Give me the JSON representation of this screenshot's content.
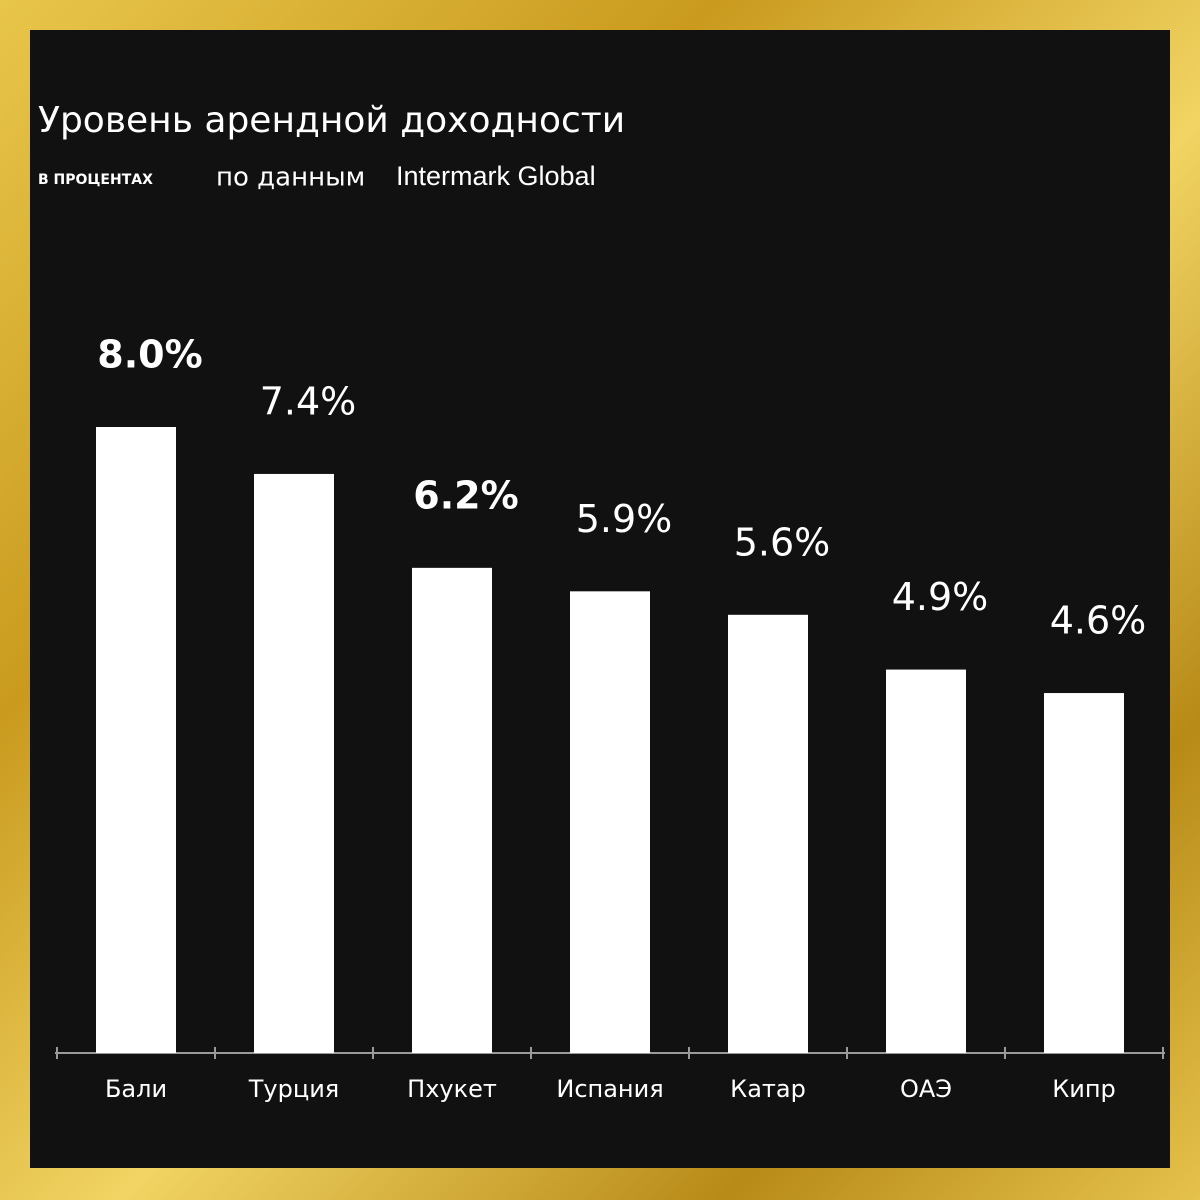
{
  "chart_data": {
    "type": "bar",
    "title": "Уровень арендной доходности",
    "subtitle": "В ПРОЦЕНТАХ",
    "source_prefix": "по данным",
    "source_name": "Intermark Global",
    "categories": [
      "Бали",
      "Турция",
      "Пхукет",
      "Испания",
      "Катар",
      "ОАЭ",
      "Кипр"
    ],
    "values": [
      8.0,
      7.4,
      6.2,
      5.9,
      5.6,
      4.9,
      4.6
    ],
    "value_labels": [
      "8.0%",
      "7.4%",
      "6.2%",
      "5.9%",
      "5.6%",
      "4.9%",
      "4.6%"
    ],
    "color": "#ffffff"
  }
}
